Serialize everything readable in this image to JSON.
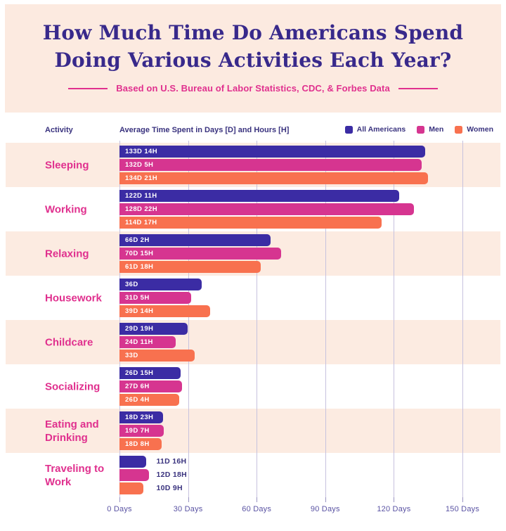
{
  "header": {
    "title_line1": "How Much Time Do Americans Spend",
    "title_line2": "Doing Various Activities Each Year?",
    "subtitle": "Based on U.S. Bureau of Labor Statistics, CDC, & Forbes Data"
  },
  "theme": {
    "header_bg": "#FCEAE0",
    "band_bg": "#FCEBE1",
    "title_color": "#38298B",
    "accent_pink": "#E0308E",
    "header_text": "#39327E",
    "axis_label": "#5A53A3",
    "gridline": "#C7C2DE"
  },
  "chart_data": {
    "type": "bar",
    "orientation": "horizontal",
    "title": "How Much Time Do Americans Spend Doing Various Activities Each Year?",
    "subtitle": "Based on U.S. Bureau of Labor Statistics, CDC, & Forbes Data",
    "activity_column_label": "Activity",
    "axis_title": "Average Time Spent in Days [D] and Hours [H]",
    "x_unit": "Days",
    "xlim": [
      0,
      150
    ],
    "grid": true,
    "legend_position": "top-right",
    "x_ticks": [
      {
        "value": 0,
        "label": "0 Days"
      },
      {
        "value": 30,
        "label": "30 Days"
      },
      {
        "value": 60,
        "label": "60 Days"
      },
      {
        "value": 90,
        "label": "90 Days"
      },
      {
        "value": 120,
        "label": "120 Days"
      },
      {
        "value": 150,
        "label": "150 Days"
      }
    ],
    "legend": [
      {
        "name": "All Americans",
        "color": "#3B2CA4"
      },
      {
        "name": "Men",
        "color": "#D63590"
      },
      {
        "name": "Women",
        "color": "#F8714F"
      }
    ],
    "categories": [
      "Sleeping",
      "Working",
      "Relaxing",
      "Housework",
      "Childcare",
      "Socializing",
      "Eating and Drinking",
      "Traveling to Work"
    ],
    "rows": [
      {
        "activity": "Sleeping",
        "bars": [
          {
            "series": "All Americans",
            "days": 133,
            "hours": 14,
            "label": "133D 14H"
          },
          {
            "series": "Men",
            "days": 132,
            "hours": 5,
            "label": "132D 5H"
          },
          {
            "series": "Women",
            "days": 134,
            "hours": 21,
            "label": "134D 21H"
          }
        ]
      },
      {
        "activity": "Working",
        "bars": [
          {
            "series": "All Americans",
            "days": 122,
            "hours": 11,
            "label": "122D 11H"
          },
          {
            "series": "Men",
            "days": 128,
            "hours": 22,
            "label": "128D 22H"
          },
          {
            "series": "Women",
            "days": 114,
            "hours": 17,
            "label": "114D 17H"
          }
        ]
      },
      {
        "activity": "Relaxing",
        "bars": [
          {
            "series": "All Americans",
            "days": 66,
            "hours": 2,
            "label": "66D 2H"
          },
          {
            "series": "Men",
            "days": 70,
            "hours": 15,
            "label": "70D 15H"
          },
          {
            "series": "Women",
            "days": 61,
            "hours": 18,
            "label": "61D 18H"
          }
        ]
      },
      {
        "activity": "Housework",
        "bars": [
          {
            "series": "All Americans",
            "days": 36,
            "hours": 0,
            "label": "36D"
          },
          {
            "series": "Men",
            "days": 31,
            "hours": 5,
            "label": "31D 5H"
          },
          {
            "series": "Women",
            "days": 39,
            "hours": 14,
            "label": "39D 14H"
          }
        ]
      },
      {
        "activity": "Childcare",
        "bars": [
          {
            "series": "All Americans",
            "days": 29,
            "hours": 19,
            "label": "29D 19H"
          },
          {
            "series": "Men",
            "days": 24,
            "hours": 11,
            "label": "24D 11H"
          },
          {
            "series": "Women",
            "days": 33,
            "hours": 0,
            "label": "33D"
          }
        ]
      },
      {
        "activity": "Socializing",
        "bars": [
          {
            "series": "All Americans",
            "days": 26,
            "hours": 15,
            "label": "26D 15H"
          },
          {
            "series": "Men",
            "days": 27,
            "hours": 6,
            "label": "27D 6H"
          },
          {
            "series": "Women",
            "days": 26,
            "hours": 4,
            "label": "26D 4H"
          }
        ]
      },
      {
        "activity": "Eating and Drinking",
        "bars": [
          {
            "series": "All Americans",
            "days": 18,
            "hours": 23,
            "label": "18D 23H"
          },
          {
            "series": "Men",
            "days": 19,
            "hours": 7,
            "label": "19D 7H"
          },
          {
            "series": "Women",
            "days": 18,
            "hours": 8,
            "label": "18D 8H"
          }
        ]
      },
      {
        "activity": "Traveling to Work",
        "bars": [
          {
            "series": "All Americans",
            "days": 11,
            "hours": 16,
            "label": "11D 16H"
          },
          {
            "series": "Men",
            "days": 12,
            "hours": 18,
            "label": "12D 18H"
          },
          {
            "series": "Women",
            "days": 10,
            "hours": 9,
            "label": "10D 9H"
          }
        ]
      }
    ]
  }
}
